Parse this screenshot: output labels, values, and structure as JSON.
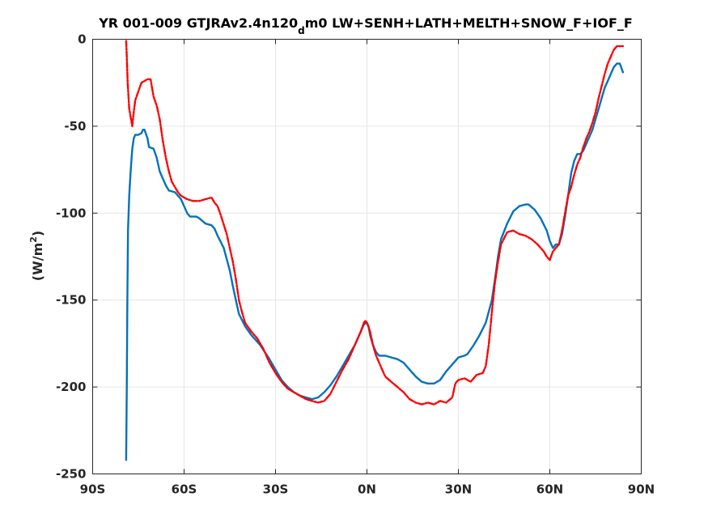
{
  "chart_data": {
    "type": "line",
    "title": {
      "prefix": "YR 001-009 GTJRAv2.4n120",
      "subscript": "d",
      "suffix": "m0 LW+SENH+LATH+MELTH+SNOW_F+IOF_F"
    },
    "xlabel": "",
    "ylabel": {
      "main": "(W/m",
      "sup": "2",
      "close": ")"
    },
    "xlim": [
      -90,
      90
    ],
    "ylim": [
      -250,
      0
    ],
    "grid": true,
    "x_ticks": [
      {
        "value": -90,
        "label": "90S"
      },
      {
        "value": -60,
        "label": "60S"
      },
      {
        "value": -30,
        "label": "30S"
      },
      {
        "value": 0,
        "label": "0N"
      },
      {
        "value": 30,
        "label": "30N"
      },
      {
        "value": 60,
        "label": "60N"
      },
      {
        "value": 90,
        "label": "90N"
      }
    ],
    "y_ticks": [
      {
        "value": 0,
        "label": "0"
      },
      {
        "value": -50,
        "label": "-50"
      },
      {
        "value": -100,
        "label": "-100"
      },
      {
        "value": -150,
        "label": "-150"
      },
      {
        "value": -200,
        "label": "-200"
      },
      {
        "value": -250,
        "label": "-250"
      }
    ],
    "series": [
      {
        "color": "#0072BD",
        "style": "solid",
        "points": [
          [
            -79,
            -242
          ],
          [
            -78.8,
            -200
          ],
          [
            -78.6,
            -150
          ],
          [
            -78.4,
            -110
          ],
          [
            -78,
            -90
          ],
          [
            -77.5,
            -75
          ],
          [
            -77,
            -63
          ],
          [
            -76.5,
            -57
          ],
          [
            -76,
            -55
          ],
          [
            -75,
            -55
          ],
          [
            -74,
            -54
          ],
          [
            -73.5,
            -52
          ],
          [
            -73,
            -52
          ],
          [
            -72,
            -57
          ],
          [
            -71.5,
            -62
          ],
          [
            -70,
            -63
          ],
          [
            -69,
            -68
          ],
          [
            -68,
            -76
          ],
          [
            -67,
            -80
          ],
          [
            -66,
            -84
          ],
          [
            -65,
            -87
          ],
          [
            -63,
            -88
          ],
          [
            -61,
            -92
          ],
          [
            -60,
            -96
          ],
          [
            -59,
            -100
          ],
          [
            -58,
            -102
          ],
          [
            -56,
            -102
          ],
          [
            -55,
            -103
          ],
          [
            -53,
            -106
          ],
          [
            -51,
            -107
          ],
          [
            -50,
            -109
          ],
          [
            -49,
            -113
          ],
          [
            -47,
            -120
          ],
          [
            -45,
            -133
          ],
          [
            -44,
            -142
          ],
          [
            -43,
            -150
          ],
          [
            -42,
            -158
          ],
          [
            -40,
            -165
          ],
          [
            -38,
            -170
          ],
          [
            -35,
            -176
          ],
          [
            -32,
            -184
          ],
          [
            -30,
            -190
          ],
          [
            -28,
            -196
          ],
          [
            -26,
            -200
          ],
          [
            -24,
            -203
          ],
          [
            -22,
            -205
          ],
          [
            -20,
            -206
          ],
          [
            -18,
            -207
          ],
          [
            -16,
            -206
          ],
          [
            -14,
            -203
          ],
          [
            -12,
            -199
          ],
          [
            -10,
            -194
          ],
          [
            -8,
            -188
          ],
          [
            -6,
            -182
          ],
          [
            -4,
            -176
          ],
          [
            -2,
            -168
          ],
          [
            -1,
            -164
          ],
          [
            0,
            -163
          ],
          [
            0.5,
            -165
          ],
          [
            1,
            -170
          ],
          [
            2,
            -176
          ],
          [
            3,
            -180
          ],
          [
            4,
            -182
          ],
          [
            6,
            -182
          ],
          [
            8,
            -183
          ],
          [
            10,
            -184
          ],
          [
            12,
            -186
          ],
          [
            14,
            -190
          ],
          [
            16,
            -194
          ],
          [
            18,
            -197
          ],
          [
            20,
            -198
          ],
          [
            22,
            -198
          ],
          [
            24,
            -196
          ],
          [
            26,
            -191
          ],
          [
            28,
            -187
          ],
          [
            30,
            -183
          ],
          [
            32,
            -182
          ],
          [
            33,
            -181
          ],
          [
            35,
            -176
          ],
          [
            37,
            -170
          ],
          [
            39,
            -163
          ],
          [
            41,
            -150
          ],
          [
            42,
            -138
          ],
          [
            43,
            -125
          ],
          [
            44,
            -115
          ],
          [
            46,
            -106
          ],
          [
            48,
            -99
          ],
          [
            50,
            -96
          ],
          [
            52,
            -95
          ],
          [
            53,
            -95
          ],
          [
            55,
            -98
          ],
          [
            57,
            -103
          ],
          [
            59,
            -110
          ],
          [
            60,
            -116
          ],
          [
            61,
            -120
          ],
          [
            62,
            -118
          ],
          [
            63,
            -118
          ],
          [
            64,
            -112
          ],
          [
            65,
            -102
          ],
          [
            66,
            -90
          ],
          [
            67,
            -77
          ],
          [
            68,
            -70
          ],
          [
            69,
            -66
          ],
          [
            70,
            -66
          ],
          [
            71,
            -64
          ],
          [
            72,
            -60
          ],
          [
            73,
            -56
          ],
          [
            74,
            -52
          ],
          [
            75,
            -46
          ],
          [
            76,
            -40
          ],
          [
            77,
            -34
          ],
          [
            78,
            -28
          ],
          [
            79,
            -24
          ],
          [
            80,
            -20
          ],
          [
            81,
            -16
          ],
          [
            82,
            -14
          ],
          [
            83,
            -14
          ],
          [
            84,
            -19
          ]
        ]
      },
      {
        "color": "#FF0000",
        "style": "dashdot",
        "points": [
          [
            -79,
            -1
          ],
          [
            -78.8,
            -10
          ],
          [
            -78.5,
            -25
          ],
          [
            -78,
            -40
          ],
          [
            -77.5,
            -45
          ],
          [
            -77,
            -50
          ],
          [
            -76.5,
            -42
          ],
          [
            -76,
            -35
          ],
          [
            -75,
            -30
          ],
          [
            -74,
            -25
          ],
          [
            -73,
            -24
          ],
          [
            -72,
            -23
          ],
          [
            -71,
            -23
          ],
          [
            -70,
            -33
          ],
          [
            -69,
            -38
          ],
          [
            -68,
            -46
          ],
          [
            -67,
            -58
          ],
          [
            -66,
            -68
          ],
          [
            -65,
            -76
          ],
          [
            -64,
            -82
          ],
          [
            -63,
            -85
          ],
          [
            -62,
            -88
          ],
          [
            -61,
            -90
          ],
          [
            -60,
            -91
          ],
          [
            -59,
            -92
          ],
          [
            -57,
            -93
          ],
          [
            -55,
            -93
          ],
          [
            -53,
            -92
          ],
          [
            -51,
            -91
          ],
          [
            -50,
            -94
          ],
          [
            -49,
            -96
          ],
          [
            -48,
            -101
          ],
          [
            -46,
            -112
          ],
          [
            -44,
            -128
          ],
          [
            -43,
            -138
          ],
          [
            -42,
            -150
          ],
          [
            -41,
            -157
          ],
          [
            -40,
            -163
          ],
          [
            -38,
            -168
          ],
          [
            -36,
            -172
          ],
          [
            -34,
            -178
          ],
          [
            -32,
            -186
          ],
          [
            -30,
            -192
          ],
          [
            -28,
            -197
          ],
          [
            -26,
            -201
          ],
          [
            -24,
            -203
          ],
          [
            -22,
            -205
          ],
          [
            -20,
            -207
          ],
          [
            -18,
            -208
          ],
          [
            -16,
            -209
          ],
          [
            -14,
            -208
          ],
          [
            -12,
            -204
          ],
          [
            -10,
            -197
          ],
          [
            -8,
            -190
          ],
          [
            -6,
            -184
          ],
          [
            -4,
            -176
          ],
          [
            -2,
            -168
          ],
          [
            -1,
            -163
          ],
          [
            -0.5,
            -162
          ],
          [
            0,
            -163
          ],
          [
            1,
            -168
          ],
          [
            2,
            -176
          ],
          [
            3,
            -182
          ],
          [
            4,
            -186
          ],
          [
            5,
            -190
          ],
          [
            6,
            -194
          ],
          [
            8,
            -197
          ],
          [
            10,
            -200
          ],
          [
            12,
            -203
          ],
          [
            14,
            -207
          ],
          [
            16,
            -209
          ],
          [
            18,
            -210
          ],
          [
            20,
            -209
          ],
          [
            22,
            -210
          ],
          [
            24,
            -208
          ],
          [
            26,
            -209
          ],
          [
            28,
            -206
          ],
          [
            29,
            -198
          ],
          [
            30,
            -196
          ],
          [
            32,
            -195
          ],
          [
            34,
            -197
          ],
          [
            36,
            -193
          ],
          [
            38,
            -192
          ],
          [
            39,
            -188
          ],
          [
            40,
            -175
          ],
          [
            41,
            -157
          ],
          [
            42,
            -140
          ],
          [
            43,
            -128
          ],
          [
            44,
            -118
          ],
          [
            46,
            -111
          ],
          [
            48,
            -110
          ],
          [
            50,
            -112
          ],
          [
            52,
            -113
          ],
          [
            54,
            -115
          ],
          [
            56,
            -118
          ],
          [
            58,
            -122
          ],
          [
            59,
            -125
          ],
          [
            60,
            -127
          ],
          [
            61,
            -122
          ],
          [
            62,
            -120
          ],
          [
            63,
            -118
          ],
          [
            64,
            -110
          ],
          [
            65,
            -100
          ],
          [
            66,
            -90
          ],
          [
            67,
            -85
          ],
          [
            68,
            -78
          ],
          [
            69,
            -72
          ],
          [
            70,
            -68
          ],
          [
            71,
            -62
          ],
          [
            72,
            -57
          ],
          [
            73,
            -53
          ],
          [
            74,
            -48
          ],
          [
            75,
            -42
          ],
          [
            76,
            -34
          ],
          [
            77,
            -27
          ],
          [
            78,
            -20
          ],
          [
            79,
            -14
          ],
          [
            80,
            -10
          ],
          [
            81,
            -6
          ],
          [
            82,
            -4
          ],
          [
            83,
            -4
          ],
          [
            84,
            -4
          ]
        ]
      }
    ]
  }
}
